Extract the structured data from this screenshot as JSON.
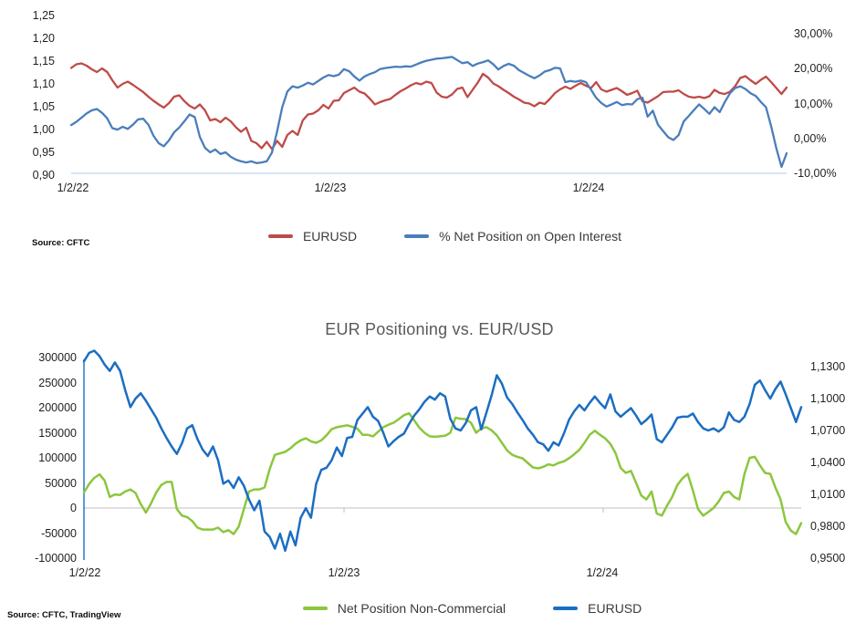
{
  "page": {
    "background": "#ffffff"
  },
  "chart_data": [
    {
      "type": "line",
      "title": "",
      "source": "Source: CFTC",
      "legend_position": "bottom-center",
      "grid": "off",
      "x_ticks": [
        "1/2/22",
        "1/2/23",
        "1/2/24"
      ],
      "left_axis": {
        "tick_labels": [
          "1,25",
          "1,20",
          "1,15",
          "1,10",
          "1,05",
          "1,00",
          "0,95",
          "0,90"
        ],
        "tick_values": [
          1.25,
          1.2,
          1.15,
          1.1,
          1.05,
          1.0,
          0.95,
          0.9
        ],
        "range": [
          0.9,
          1.25
        ]
      },
      "right_axis": {
        "tick_labels": [
          "30,00%",
          "20,00%",
          "10,00%",
          "0,00%",
          "-10,00%"
        ],
        "tick_values": [
          30,
          20,
          10,
          0,
          -10
        ],
        "range": [
          -10.44,
          35.25
        ]
      },
      "series": [
        {
          "name": "EURUSD",
          "color": "#BE4B48",
          "axis": "left",
          "values": [
            1.135,
            1.143,
            1.145,
            1.14,
            1.132,
            1.126,
            1.134,
            1.126,
            1.108,
            1.092,
            1.1,
            1.105,
            1.098,
            1.09,
            1.082,
            1.072,
            1.063,
            1.055,
            1.048,
            1.058,
            1.072,
            1.075,
            1.062,
            1.052,
            1.046,
            1.055,
            1.042,
            1.02,
            1.023,
            1.016,
            1.026,
            1.018,
            1.005,
            0.995,
            1.004,
            0.975,
            0.97,
            0.959,
            0.973,
            0.957,
            0.975,
            0.962,
            0.988,
            0.997,
            0.988,
            1.02,
            1.033,
            1.035,
            1.042,
            1.054,
            1.046,
            1.063,
            1.064,
            1.08,
            1.086,
            1.092,
            1.083,
            1.079,
            1.068,
            1.055,
            1.06,
            1.064,
            1.067,
            1.076,
            1.084,
            1.09,
            1.097,
            1.102,
            1.099,
            1.105,
            1.102,
            1.081,
            1.072,
            1.07,
            1.077,
            1.089,
            1.092,
            1.071,
            1.087,
            1.103,
            1.122,
            1.114,
            1.101,
            1.095,
            1.087,
            1.08,
            1.072,
            1.066,
            1.059,
            1.057,
            1.051,
            1.059,
            1.056,
            1.067,
            1.08,
            1.088,
            1.094,
            1.089,
            1.096,
            1.102,
            1.096,
            1.091,
            1.104,
            1.088,
            1.083,
            1.087,
            1.091,
            1.084,
            1.076,
            1.08,
            1.085,
            1.062,
            1.059,
            1.066,
            1.073,
            1.082,
            1.083,
            1.083,
            1.086,
            1.078,
            1.072,
            1.07,
            1.072,
            1.069,
            1.073,
            1.087,
            1.08,
            1.078,
            1.083,
            1.095,
            1.113,
            1.117,
            1.108,
            1.1,
            1.109,
            1.116,
            1.104,
            1.091,
            1.078,
            1.092
          ]
        },
        {
          "name": "% Net Position on Open Interest",
          "color": "#4A7EBB",
          "axis": "right",
          "values": [
            3.9,
            4.8,
            6.0,
            7.2,
            8.1,
            8.5,
            7.4,
            5.8,
            3.0,
            2.6,
            3.4,
            2.8,
            4.0,
            5.5,
            5.7,
            4.0,
            0.8,
            -1.3,
            -2.2,
            -0.5,
            1.8,
            3.2,
            5.0,
            6.9,
            6.2,
            0.5,
            -2.6,
            -3.9,
            -3.1,
            -4.4,
            -3.9,
            -5.2,
            -6.0,
            -6.5,
            -6.8,
            -6.5,
            -7.0,
            -6.8,
            -6.5,
            -4.0,
            2.0,
            9.0,
            13.5,
            15.0,
            14.6,
            15.2,
            16.0,
            15.5,
            16.5,
            17.5,
            18.2,
            17.9,
            18.3,
            19.9,
            19.3,
            17.8,
            16.6,
            17.8,
            18.5,
            19.0,
            19.9,
            20.2,
            20.4,
            20.6,
            20.5,
            20.7,
            20.6,
            21.2,
            21.8,
            22.3,
            22.6,
            22.9,
            23.0,
            23.2,
            23.4,
            22.5,
            21.6,
            21.9,
            20.8,
            21.5,
            21.9,
            22.4,
            21.3,
            19.8,
            20.8,
            21.4,
            20.9,
            19.6,
            18.8,
            18.0,
            17.3,
            18.1,
            19.2,
            19.6,
            20.3,
            20.1,
            16.2,
            16.5,
            16.3,
            16.6,
            16.2,
            14.0,
            11.7,
            10.2,
            9.2,
            9.8,
            10.5,
            9.6,
            9.9,
            9.8,
            11.3,
            11.7,
            6.3,
            8.0,
            4.0,
            2.2,
            0.4,
            -0.4,
            1.0,
            4.9,
            6.5,
            8.2,
            9.8,
            8.5,
            7.1,
            9.0,
            7.6,
            10.5,
            13.0,
            14.5,
            15.0,
            14.2,
            13.0,
            12.2,
            10.5,
            9.0,
            3.5,
            -2.7,
            -8.1,
            -4.2
          ]
        }
      ]
    },
    {
      "type": "line",
      "title": "EUR Positioning vs. EUR/USD",
      "source": "Source: CFTC, TradingView",
      "legend_position": "bottom-center",
      "grid": "off",
      "x_ticks": [
        "1/2/22",
        "1/2/23",
        "1/2/24"
      ],
      "left_axis": {
        "tick_labels": [
          "300000",
          "250000",
          "200000",
          "150000",
          "100000",
          "50000",
          "0",
          "-50000",
          "-100000"
        ],
        "tick_values": [
          300000,
          250000,
          200000,
          150000,
          100000,
          50000,
          0,
          -50000,
          -100000
        ],
        "range": [
          -100000,
          300000
        ]
      },
      "right_axis": {
        "tick_labels": [
          "1,1300",
          "1,1000",
          "1,0700",
          "1,0400",
          "1,0100",
          "0,9800",
          "0,9500"
        ],
        "tick_values": [
          1.13,
          1.1,
          1.07,
          1.04,
          1.01,
          0.98,
          0.95
        ],
        "range": [
          0.95,
          1.1386
        ]
      },
      "series": [
        {
          "name": "Net Position Non-Commercial",
          "color": "#8CC63E",
          "axis": "left",
          "values": [
            31000,
            48000,
            60000,
            67000,
            55000,
            22000,
            27000,
            26000,
            33000,
            37000,
            30000,
            8000,
            -9000,
            9000,
            31000,
            46000,
            52000,
            52000,
            -2000,
            -15000,
            -18000,
            -26000,
            -39000,
            -43000,
            -43000,
            -43000,
            -39000,
            -48000,
            -44000,
            -52000,
            -37000,
            -2000,
            33000,
            37000,
            37000,
            41000,
            78000,
            106000,
            109000,
            112000,
            119000,
            128000,
            135000,
            139000,
            133000,
            130000,
            135000,
            145000,
            157000,
            161000,
            163000,
            165000,
            162000,
            158000,
            146000,
            146000,
            143000,
            152000,
            161000,
            166000,
            170000,
            177000,
            185000,
            189000,
            175000,
            160000,
            150000,
            143000,
            142000,
            143000,
            144000,
            150000,
            180000,
            178000,
            177000,
            170000,
            150000,
            159000,
            161000,
            155000,
            145000,
            130000,
            115000,
            106000,
            102000,
            99000,
            90000,
            81000,
            79000,
            82000,
            87000,
            85000,
            90000,
            93000,
            99000,
            107000,
            116000,
            130000,
            146000,
            154000,
            146000,
            139000,
            128000,
            110000,
            80000,
            70000,
            74000,
            50000,
            25000,
            17000,
            33000,
            -11000,
            -15000,
            5000,
            22000,
            46000,
            59000,
            68000,
            35000,
            -2000,
            -15000,
            -8000,
            0,
            13000,
            30000,
            33000,
            22000,
            17000,
            68000,
            100000,
            102000,
            85000,
            70000,
            68000,
            41000,
            17000,
            -28000,
            -45000,
            -52000,
            -30000
          ]
        },
        {
          "name": "EURUSD",
          "color": "#1B6EC2",
          "axis": "right",
          "values": [
            1.135,
            1.143,
            1.145,
            1.14,
            1.132,
            1.126,
            1.134,
            1.126,
            1.108,
            1.092,
            1.1,
            1.105,
            1.098,
            1.09,
            1.082,
            1.072,
            1.063,
            1.055,
            1.048,
            1.058,
            1.072,
            1.075,
            1.062,
            1.052,
            1.046,
            1.055,
            1.042,
            1.02,
            1.023,
            1.016,
            1.026,
            1.018,
            1.005,
            0.995,
            1.004,
            0.975,
            0.97,
            0.959,
            0.973,
            0.957,
            0.975,
            0.962,
            0.988,
            0.997,
            0.988,
            1.02,
            1.033,
            1.035,
            1.042,
            1.054,
            1.046,
            1.063,
            1.064,
            1.08,
            1.086,
            1.092,
            1.083,
            1.079,
            1.068,
            1.055,
            1.06,
            1.064,
            1.067,
            1.076,
            1.084,
            1.09,
            1.097,
            1.102,
            1.099,
            1.105,
            1.102,
            1.081,
            1.072,
            1.07,
            1.077,
            1.089,
            1.092,
            1.071,
            1.087,
            1.103,
            1.122,
            1.114,
            1.101,
            1.095,
            1.087,
            1.08,
            1.072,
            1.066,
            1.059,
            1.057,
            1.051,
            1.059,
            1.056,
            1.067,
            1.08,
            1.088,
            1.094,
            1.089,
            1.096,
            1.102,
            1.096,
            1.091,
            1.104,
            1.088,
            1.083,
            1.087,
            1.091,
            1.084,
            1.076,
            1.08,
            1.085,
            1.062,
            1.059,
            1.066,
            1.073,
            1.082,
            1.083,
            1.083,
            1.086,
            1.078,
            1.072,
            1.07,
            1.072,
            1.069,
            1.073,
            1.087,
            1.08,
            1.078,
            1.083,
            1.095,
            1.113,
            1.117,
            1.108,
            1.1,
            1.109,
            1.116,
            1.104,
            1.091,
            1.078,
            1.092
          ]
        }
      ]
    }
  ]
}
